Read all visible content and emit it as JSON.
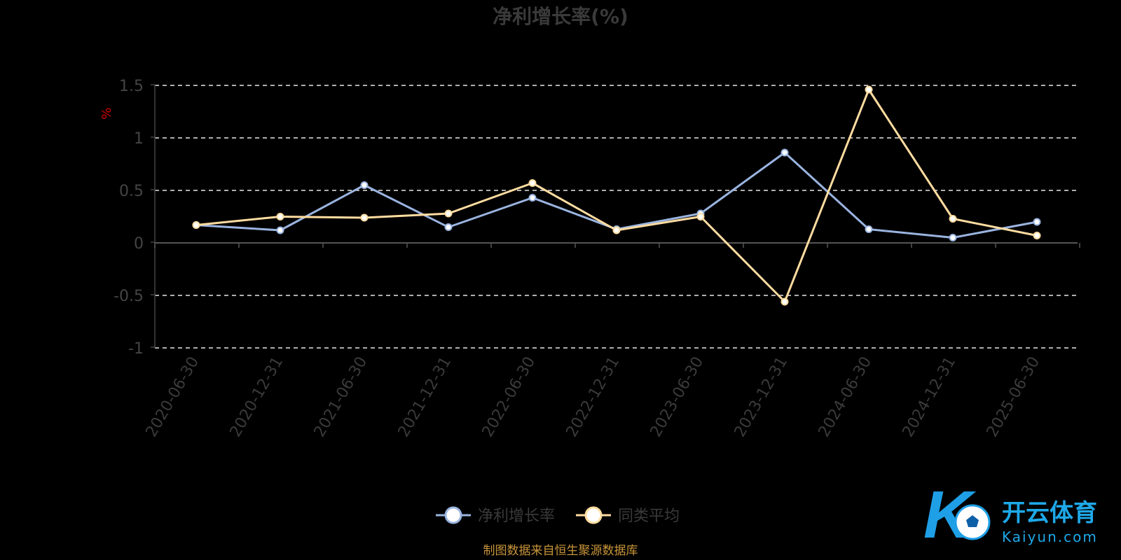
{
  "chart_data": {
    "type": "line",
    "title": "净利增长率(%)",
    "ylabel": "%",
    "xlabel": "",
    "ylim": [
      -1,
      1.5
    ],
    "yticks": [
      1.5,
      1,
      0.5,
      0,
      -0.5,
      -1
    ],
    "ytick_labels": [
      "1.5",
      "1",
      "0.5",
      "0",
      "-0.5",
      "-1"
    ],
    "grid": true,
    "legend_position": "bottom",
    "categories": [
      "2020-06-30",
      "2020-12-31",
      "2021-06-30",
      "2021-12-31",
      "2022-06-30",
      "2022-12-31",
      "2023-06-30",
      "2023-12-31",
      "2024-06-30",
      "2024-12-31",
      "2025-06-30"
    ],
    "series": [
      {
        "name": "净利增长率",
        "color": "#9ab4e0",
        "values": [
          0.17,
          0.12,
          0.55,
          0.15,
          0.43,
          0.13,
          0.28,
          0.86,
          0.13,
          0.05,
          0.2
        ]
      },
      {
        "name": "同类平均",
        "color": "#ffdca0",
        "values": [
          0.17,
          0.25,
          0.24,
          0.28,
          0.57,
          0.12,
          0.25,
          -0.56,
          1.46,
          0.23,
          0.07
        ]
      }
    ]
  },
  "footer": {
    "source": "制图数据来自恒生聚源数据库"
  },
  "logo": {
    "name": "开云体育",
    "domain": "Kaiyun.com",
    "letter": "K"
  }
}
